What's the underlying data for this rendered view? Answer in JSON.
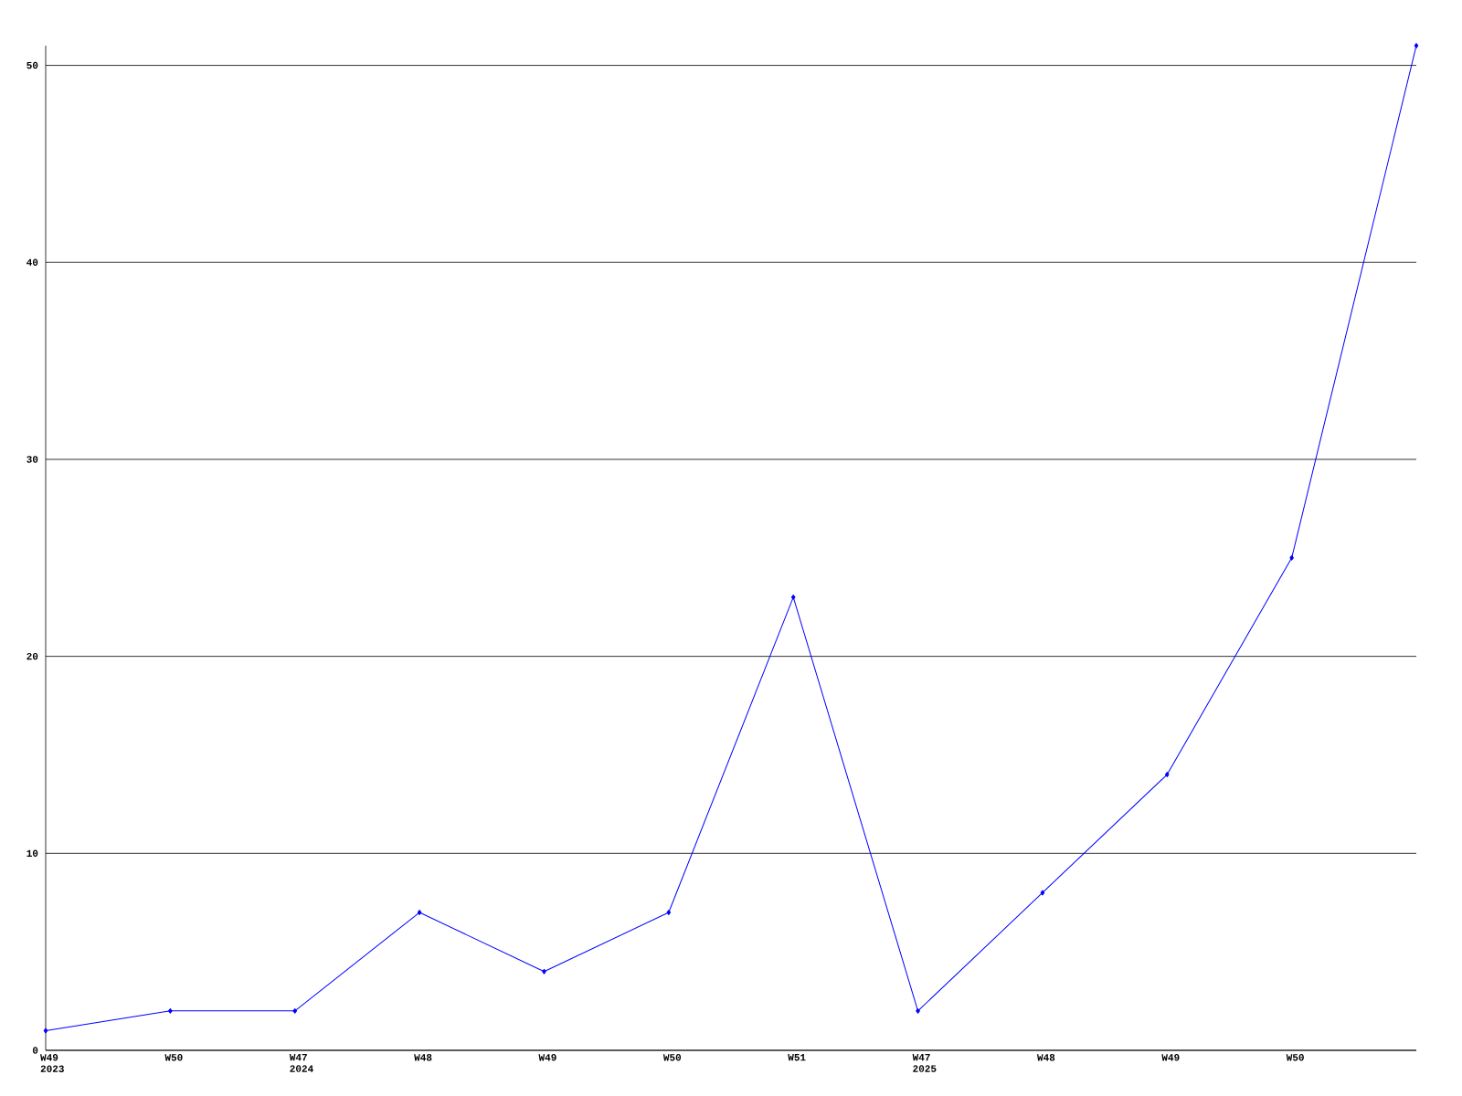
{
  "chart_data": {
    "type": "line",
    "categories": [
      "W49 2023",
      "W50",
      "W47 2024",
      "W48",
      "W49",
      "W50",
      "W51",
      "W47 2025",
      "W48",
      "W49",
      "W50",
      null
    ],
    "series": [
      {
        "color": "#0000ff",
        "values": [
          1,
          2,
          2,
          7,
          4,
          7,
          23,
          2,
          8,
          14,
          25,
          51
        ]
      }
    ],
    "ylim": [
      0,
      51
    ],
    "yticks": [
      0,
      10,
      20,
      30,
      40,
      50
    ],
    "grid": "y",
    "marker": "diamond",
    "line_style": "solid"
  }
}
